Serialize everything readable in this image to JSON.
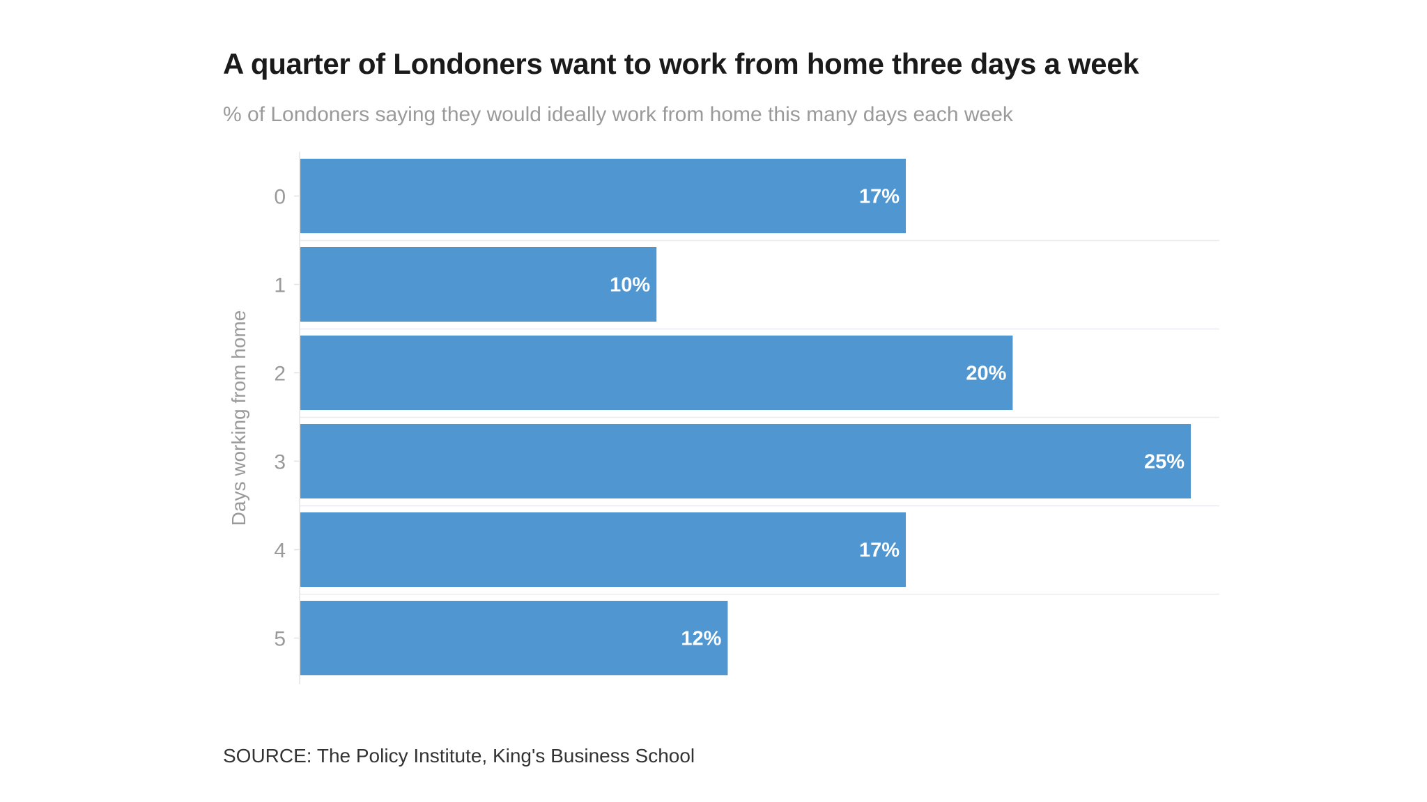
{
  "chart_data": {
    "type": "bar",
    "orientation": "horizontal",
    "title": "A quarter of Londoners want to work from home three days a week",
    "subtitle": "% of Londoners saying they would ideally work from home this many days each week",
    "ylabel": "Days working from home",
    "xlabel": "",
    "categories": [
      "0",
      "1",
      "2",
      "3",
      "4",
      "5"
    ],
    "values": [
      17,
      10,
      20,
      25,
      17,
      12
    ],
    "data_labels": [
      "17%",
      "10%",
      "20%",
      "25%",
      "17%",
      "12%"
    ],
    "xlim": [
      0,
      25
    ],
    "bar_color": "#5096d1",
    "grid": true,
    "legend": "none",
    "source": "SOURCE: The Policy Institute, King's Business School"
  }
}
